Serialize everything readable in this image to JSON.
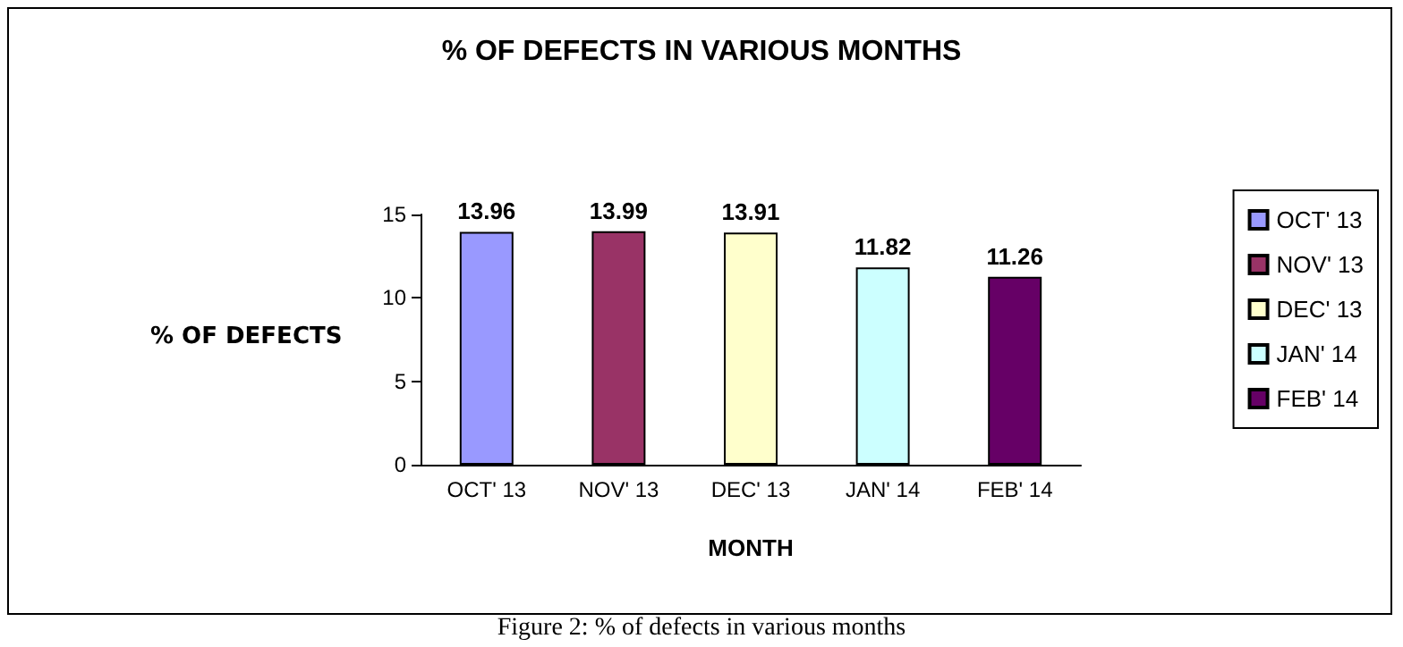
{
  "chart_data": {
    "type": "bar",
    "title": "% OF DEFECTS IN VARIOUS MONTHS",
    "categories": [
      "OCT' 13",
      "NOV' 13",
      "DEC' 13",
      "JAN' 14",
      "FEB' 14"
    ],
    "series": [
      {
        "name": "OCT' 13",
        "color": "#9999ff",
        "values": [
          13.96,
          null,
          null,
          null,
          null
        ]
      },
      {
        "name": "NOV' 13",
        "color": "#993366",
        "values": [
          null,
          13.99,
          null,
          null,
          null
        ]
      },
      {
        "name": "DEC' 13",
        "color": "#ffffcc",
        "values": [
          null,
          null,
          13.91,
          null,
          null
        ]
      },
      {
        "name": "JAN' 14",
        "color": "#ccffff",
        "values": [
          null,
          null,
          null,
          11.82,
          null
        ]
      },
      {
        "name": "FEB' 14",
        "color": "#660066",
        "values": [
          null,
          null,
          null,
          null,
          11.26
        ]
      }
    ],
    "xlabel": "MONTH",
    "ylabel": "% OF DEFECTS",
    "ylim": [
      0,
      15
    ],
    "yticks": [
      0,
      5,
      10,
      15
    ],
    "data_labels": true,
    "grid": false,
    "legend": "right",
    "annotations": [
      "Figure 2: % of defects in various months"
    ]
  }
}
